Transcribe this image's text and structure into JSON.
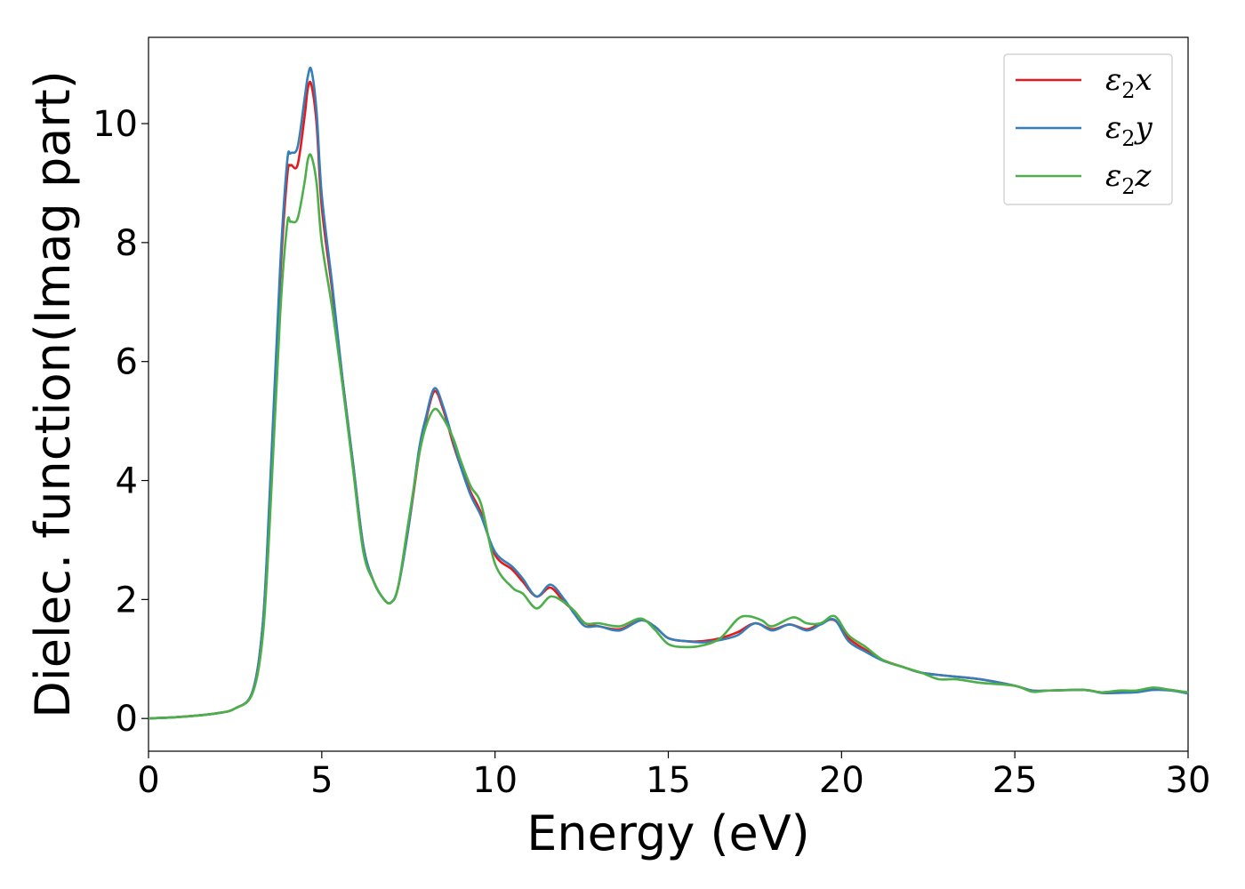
{
  "chart_data": {
    "type": "line",
    "title": "",
    "xlabel": "Energy (eV)",
    "ylabel": "Dielec. function(Imag part)",
    "xlim": [
      0,
      30
    ],
    "ylim": [
      -0.55,
      11.45
    ],
    "xticks": [
      0,
      5,
      10,
      15,
      20,
      25,
      30
    ],
    "yticks": [
      0,
      2,
      4,
      6,
      8,
      10
    ],
    "grid": false,
    "legend_position": "top-right",
    "series": [
      {
        "name": "ε2x",
        "legend_base": "ε",
        "legend_sub": "2",
        "legend_var": "x",
        "color": "#e41a1c",
        "points": [
          [
            0,
            0.0
          ],
          [
            1,
            0.03
          ],
          [
            2,
            0.09
          ],
          [
            2.5,
            0.17
          ],
          [
            3,
            0.45
          ],
          [
            3.3,
            1.6
          ],
          [
            3.5,
            3.7
          ],
          [
            3.8,
            7.4
          ],
          [
            4.0,
            9.1
          ],
          [
            4.1,
            9.3
          ],
          [
            4.3,
            9.3
          ],
          [
            4.5,
            10.1
          ],
          [
            4.6,
            10.6
          ],
          [
            4.7,
            10.65
          ],
          [
            4.85,
            10.0
          ],
          [
            5.0,
            8.6
          ],
          [
            5.3,
            7.2
          ],
          [
            5.6,
            5.7
          ],
          [
            5.9,
            4.3
          ],
          [
            6.2,
            2.9
          ],
          [
            6.5,
            2.3
          ],
          [
            6.8,
            2.0
          ],
          [
            7.0,
            1.95
          ],
          [
            7.2,
            2.2
          ],
          [
            7.5,
            3.2
          ],
          [
            7.8,
            4.4
          ],
          [
            8.0,
            5.0
          ],
          [
            8.25,
            5.5
          ],
          [
            8.5,
            5.2
          ],
          [
            8.8,
            4.6
          ],
          [
            9.0,
            4.25
          ],
          [
            9.3,
            3.8
          ],
          [
            9.6,
            3.45
          ],
          [
            10.0,
            2.75
          ],
          [
            10.5,
            2.5
          ],
          [
            10.8,
            2.3
          ],
          [
            11.2,
            2.05
          ],
          [
            11.6,
            2.2
          ],
          [
            12.0,
            1.95
          ],
          [
            12.3,
            1.8
          ],
          [
            12.6,
            1.6
          ],
          [
            13.0,
            1.55
          ],
          [
            13.6,
            1.5
          ],
          [
            14.2,
            1.65
          ],
          [
            14.6,
            1.55
          ],
          [
            15.0,
            1.35
          ],
          [
            15.5,
            1.3
          ],
          [
            16.0,
            1.3
          ],
          [
            16.5,
            1.35
          ],
          [
            17.0,
            1.45
          ],
          [
            17.5,
            1.6
          ],
          [
            18.0,
            1.5
          ],
          [
            18.5,
            1.58
          ],
          [
            19.0,
            1.5
          ],
          [
            19.4,
            1.6
          ],
          [
            19.8,
            1.65
          ],
          [
            20.2,
            1.35
          ],
          [
            20.7,
            1.15
          ],
          [
            21.2,
            0.98
          ],
          [
            21.8,
            0.86
          ],
          [
            22.3,
            0.77
          ],
          [
            23.0,
            0.72
          ],
          [
            24.0,
            0.66
          ],
          [
            25.0,
            0.55
          ],
          [
            25.5,
            0.47
          ],
          [
            26.0,
            0.47
          ],
          [
            27.0,
            0.48
          ],
          [
            27.5,
            0.44
          ],
          [
            28.0,
            0.46
          ],
          [
            28.5,
            0.45
          ],
          [
            29.0,
            0.5
          ],
          [
            29.5,
            0.48
          ],
          [
            30.0,
            0.43
          ]
        ]
      },
      {
        "name": "ε2y",
        "legend_base": "ε",
        "legend_sub": "2",
        "legend_var": "y",
        "color": "#377eb8",
        "points": [
          [
            0,
            0.0
          ],
          [
            1,
            0.03
          ],
          [
            2,
            0.09
          ],
          [
            2.5,
            0.17
          ],
          [
            3,
            0.45
          ],
          [
            3.3,
            1.6
          ],
          [
            3.5,
            3.8
          ],
          [
            3.8,
            7.6
          ],
          [
            4.0,
            9.35
          ],
          [
            4.1,
            9.5
          ],
          [
            4.3,
            9.6
          ],
          [
            4.5,
            10.4
          ],
          [
            4.6,
            10.8
          ],
          [
            4.7,
            10.9
          ],
          [
            4.85,
            10.2
          ],
          [
            5.0,
            8.8
          ],
          [
            5.3,
            7.3
          ],
          [
            5.6,
            5.7
          ],
          [
            5.9,
            4.3
          ],
          [
            6.2,
            2.9
          ],
          [
            6.5,
            2.3
          ],
          [
            6.8,
            2.0
          ],
          [
            7.0,
            1.95
          ],
          [
            7.2,
            2.2
          ],
          [
            7.5,
            3.2
          ],
          [
            7.8,
            4.5
          ],
          [
            8.0,
            5.05
          ],
          [
            8.25,
            5.55
          ],
          [
            8.5,
            5.25
          ],
          [
            8.8,
            4.65
          ],
          [
            9.0,
            4.25
          ],
          [
            9.3,
            3.75
          ],
          [
            9.6,
            3.4
          ],
          [
            10.0,
            2.8
          ],
          [
            10.5,
            2.55
          ],
          [
            10.8,
            2.35
          ],
          [
            11.2,
            2.05
          ],
          [
            11.6,
            2.25
          ],
          [
            12.0,
            2.0
          ],
          [
            12.3,
            1.75
          ],
          [
            12.6,
            1.55
          ],
          [
            13.0,
            1.55
          ],
          [
            13.6,
            1.48
          ],
          [
            14.2,
            1.65
          ],
          [
            14.6,
            1.55
          ],
          [
            15.0,
            1.35
          ],
          [
            15.5,
            1.3
          ],
          [
            16.0,
            1.28
          ],
          [
            16.5,
            1.32
          ],
          [
            17.0,
            1.4
          ],
          [
            17.5,
            1.6
          ],
          [
            18.0,
            1.48
          ],
          [
            18.5,
            1.58
          ],
          [
            19.0,
            1.48
          ],
          [
            19.4,
            1.58
          ],
          [
            19.8,
            1.66
          ],
          [
            20.2,
            1.3
          ],
          [
            20.7,
            1.12
          ],
          [
            21.2,
            0.97
          ],
          [
            21.8,
            0.86
          ],
          [
            22.3,
            0.77
          ],
          [
            23.0,
            0.72
          ],
          [
            24.0,
            0.66
          ],
          [
            25.0,
            0.55
          ],
          [
            25.5,
            0.47
          ],
          [
            26.0,
            0.47
          ],
          [
            27.0,
            0.48
          ],
          [
            27.5,
            0.43
          ],
          [
            28.0,
            0.43
          ],
          [
            28.5,
            0.44
          ],
          [
            29.0,
            0.48
          ],
          [
            29.5,
            0.47
          ],
          [
            30.0,
            0.42
          ]
        ]
      },
      {
        "name": "ε2z",
        "legend_base": "ε",
        "legend_sub": "2",
        "legend_var": "z",
        "color": "#4daf4a",
        "points": [
          [
            0,
            0.0
          ],
          [
            1,
            0.03
          ],
          [
            2,
            0.09
          ],
          [
            2.5,
            0.17
          ],
          [
            3,
            0.42
          ],
          [
            3.3,
            1.4
          ],
          [
            3.5,
            3.3
          ],
          [
            3.8,
            6.8
          ],
          [
            4.0,
            8.3
          ],
          [
            4.1,
            8.35
          ],
          [
            4.3,
            8.4
          ],
          [
            4.5,
            9.0
          ],
          [
            4.6,
            9.4
          ],
          [
            4.7,
            9.45
          ],
          [
            4.85,
            9.0
          ],
          [
            5.0,
            8.0
          ],
          [
            5.3,
            6.9
          ],
          [
            5.6,
            5.6
          ],
          [
            5.9,
            4.2
          ],
          [
            6.2,
            2.8
          ],
          [
            6.5,
            2.3
          ],
          [
            6.8,
            2.0
          ],
          [
            7.0,
            1.95
          ],
          [
            7.2,
            2.2
          ],
          [
            7.5,
            3.3
          ],
          [
            7.8,
            4.4
          ],
          [
            8.0,
            4.9
          ],
          [
            8.25,
            5.2
          ],
          [
            8.5,
            5.05
          ],
          [
            8.8,
            4.7
          ],
          [
            9.0,
            4.35
          ],
          [
            9.3,
            3.9
          ],
          [
            9.6,
            3.6
          ],
          [
            10.0,
            2.6
          ],
          [
            10.5,
            2.2
          ],
          [
            10.8,
            2.1
          ],
          [
            11.2,
            1.85
          ],
          [
            11.6,
            2.05
          ],
          [
            12.0,
            1.95
          ],
          [
            12.3,
            1.8
          ],
          [
            12.6,
            1.6
          ],
          [
            13.0,
            1.6
          ],
          [
            13.6,
            1.55
          ],
          [
            14.2,
            1.68
          ],
          [
            14.6,
            1.5
          ],
          [
            15.0,
            1.25
          ],
          [
            15.5,
            1.2
          ],
          [
            16.0,
            1.23
          ],
          [
            16.5,
            1.35
          ],
          [
            17.0,
            1.67
          ],
          [
            17.3,
            1.72
          ],
          [
            17.7,
            1.65
          ],
          [
            18.0,
            1.55
          ],
          [
            18.6,
            1.7
          ],
          [
            19.0,
            1.6
          ],
          [
            19.4,
            1.6
          ],
          [
            19.8,
            1.72
          ],
          [
            20.2,
            1.4
          ],
          [
            20.7,
            1.2
          ],
          [
            21.2,
            0.98
          ],
          [
            21.8,
            0.86
          ],
          [
            22.3,
            0.77
          ],
          [
            22.8,
            0.66
          ],
          [
            23.3,
            0.66
          ],
          [
            24.0,
            0.6
          ],
          [
            25.0,
            0.55
          ],
          [
            25.5,
            0.45
          ],
          [
            26.0,
            0.47
          ],
          [
            27.0,
            0.48
          ],
          [
            27.5,
            0.44
          ],
          [
            28.0,
            0.47
          ],
          [
            28.5,
            0.47
          ],
          [
            29.0,
            0.52
          ],
          [
            29.5,
            0.48
          ],
          [
            30.0,
            0.44
          ]
        ]
      }
    ]
  }
}
